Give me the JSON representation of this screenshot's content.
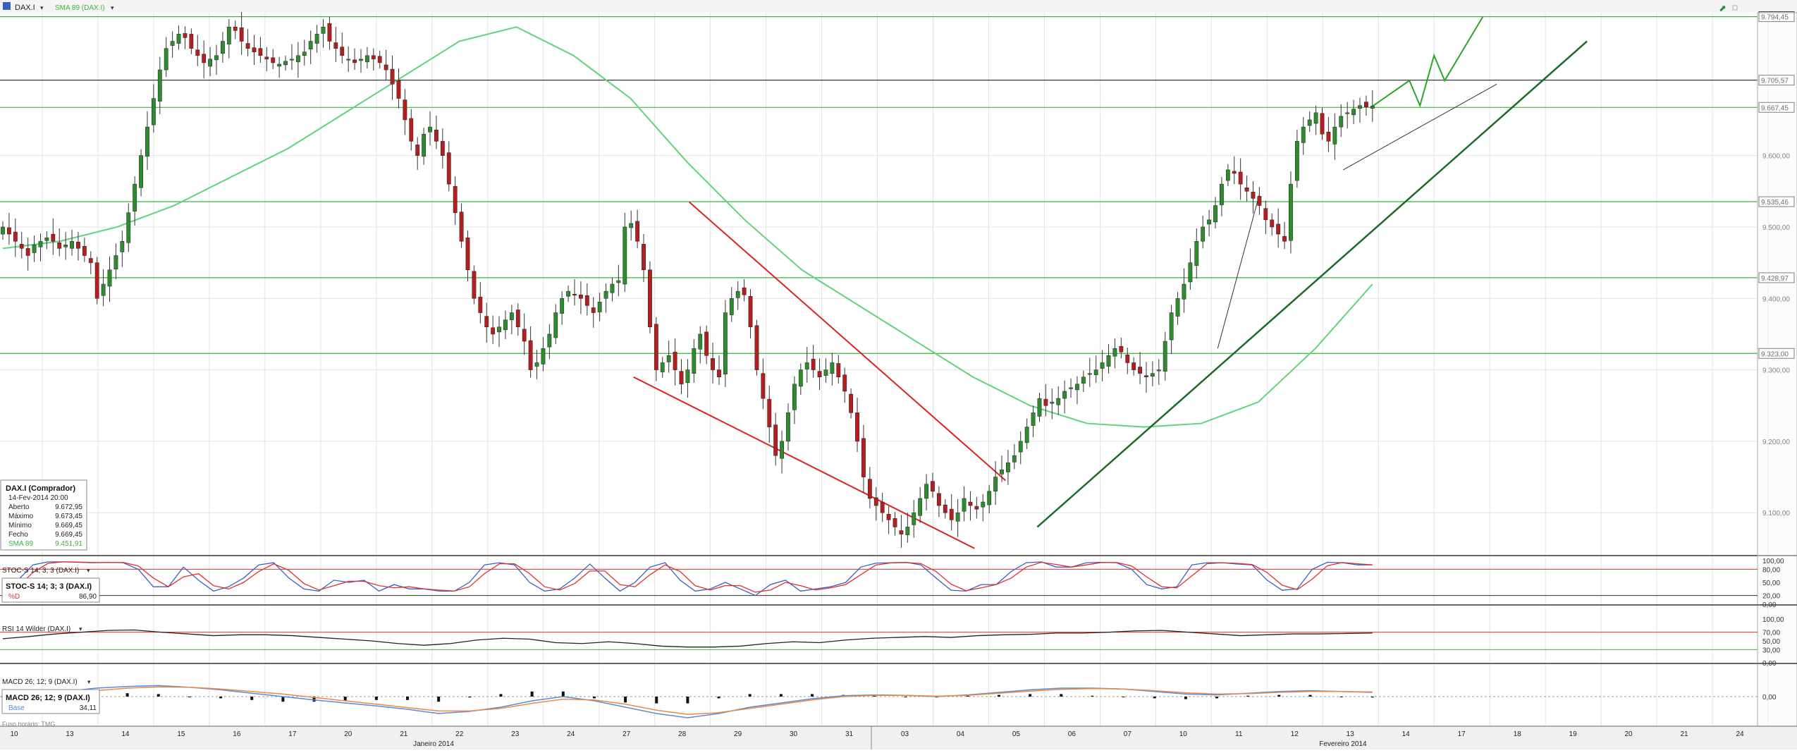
{
  "chart_data": {
    "type": "candlestick",
    "title": "DAX.I",
    "instrument": "DAX.I",
    "overlay_label": "SMA 89 (DAX.I)",
    "x_ticks": [
      "10",
      "13",
      "14",
      "15",
      "16",
      "17",
      "20",
      "21",
      "22",
      "23",
      "24",
      "27",
      "28",
      "29",
      "30",
      "31",
      "03",
      "04",
      "05",
      "06",
      "07",
      "10",
      "11",
      "12",
      "13",
      "14",
      "17",
      "18",
      "19",
      "20",
      "21",
      "24"
    ],
    "month_labels": [
      "Janeiro 2014",
      "Fevereiro 2014"
    ],
    "y_ticks": [
      "9.100,00",
      "9.200,00",
      "9.300,00",
      "9.400,00",
      "9.500,00",
      "9.600,00"
    ],
    "ylim": [
      9040,
      9800
    ],
    "h_levels": [
      {
        "label": "9.794,45",
        "value": 9794.45,
        "color": "#3cb43c"
      },
      {
        "label": "9.705,57",
        "value": 9705.57,
        "color": "#222222"
      },
      {
        "label": "9.667,45",
        "value": 9667.45,
        "color": "#3cb43c"
      },
      {
        "label": "9.535,46",
        "value": 9535.46,
        "color": "#3cb43c"
      },
      {
        "label": "9.428,97",
        "value": 9428.97,
        "color": "#3cb43c"
      },
      {
        "label": "9.323,00",
        "value": 9323.0,
        "color": "#3cb43c"
      }
    ],
    "last_price": 9669.45,
    "closes": [
      9500,
      9490,
      9480,
      9470,
      9460,
      9475,
      9480,
      9485,
      9480,
      9470,
      9475,
      9480,
      9470,
      9460,
      9450,
      9400,
      9420,
      9440,
      9460,
      9480,
      9520,
      9560,
      9600,
      9640,
      9680,
      9720,
      9750,
      9760,
      9770,
      9765,
      9750,
      9740,
      9730,
      9735,
      9740,
      9760,
      9780,
      9775,
      9760,
      9750,
      9745,
      9740,
      9735,
      9730,
      9728,
      9732,
      9735,
      9740,
      9745,
      9760,
      9770,
      9780,
      9760,
      9750,
      9740,
      9735,
      9730,
      9735,
      9740,
      9735,
      9730,
      9720,
      9700,
      9680,
      9650,
      9620,
      9600,
      9630,
      9640,
      9620,
      9600,
      9560,
      9520,
      9480,
      9440,
      9400,
      9380,
      9360,
      9350,
      9360,
      9370,
      9380,
      9360,
      9340,
      9300,
      9310,
      9330,
      9350,
      9380,
      9400,
      9410,
      9405,
      9400,
      9390,
      9380,
      9395,
      9410,
      9420,
      9425,
      9500,
      9505,
      9480,
      9440,
      9360,
      9300,
      9310,
      9320,
      9300,
      9280,
      9300,
      9330,
      9350,
      9320,
      9300,
      9290,
      9380,
      9400,
      9410,
      9405,
      9360,
      9300,
      9260,
      9220,
      9180,
      9200,
      9240,
      9280,
      9300,
      9310,
      9300,
      9290,
      9300,
      9310,
      9290,
      9270,
      9240,
      9200,
      9150,
      9120,
      9110,
      9100,
      9090,
      9080,
      9070,
      9080,
      9100,
      9120,
      9140,
      9130,
      9110,
      9100,
      9090,
      9100,
      9120,
      9110,
      9105,
      9115,
      9130,
      9150,
      9160,
      9170,
      9180,
      9200,
      9220,
      9240,
      9260,
      9250,
      9255,
      9260,
      9270,
      9275,
      9280,
      9290,
      9295,
      9300,
      9310,
      9320,
      9330,
      9325,
      9310,
      9300,
      9295,
      9290,
      9295,
      9300,
      9340,
      9380,
      9400,
      9420,
      9450,
      9480,
      9500,
      9510,
      9530,
      9560,
      9580,
      9575,
      9560,
      9550,
      9540,
      9530,
      9510,
      9500,
      9490,
      9480,
      9560,
      9620,
      9640,
      9650,
      9660,
      9630,
      9620,
      9640,
      9655,
      9660,
      9665,
      9670,
      9668,
      9669.45
    ],
    "sma": [
      9470,
      9480,
      9500,
      9530,
      9570,
      9610,
      9660,
      9710,
      9760,
      9780,
      9740,
      9680,
      9590,
      9510,
      9440,
      9390,
      9340,
      9290,
      9250,
      9225,
      9220,
      9225,
      9255,
      9330,
      9420
    ],
    "stoch_label": "STOC-S 14; 3; 3 (DAX.I)",
    "stoch_ticks": [
      "100,00",
      "80,00",
      "50,00",
      "20,00",
      "0,00"
    ],
    "stoch_values": [
      25,
      55,
      90,
      97,
      97,
      96,
      95,
      96,
      95,
      80,
      40,
      40,
      85,
      55,
      30,
      40,
      60,
      90,
      95,
      60,
      35,
      30,
      55,
      50,
      55,
      30,
      45,
      35,
      35,
      30,
      30,
      50,
      90,
      95,
      90,
      50,
      30,
      35,
      60,
      92,
      60,
      30,
      50,
      85,
      95,
      55,
      30,
      35,
      50,
      35,
      20,
      45,
      55,
      30,
      35,
      40,
      50,
      85,
      94,
      95,
      96,
      90,
      60,
      32,
      30,
      45,
      45,
      75,
      95,
      97,
      85,
      85,
      95,
      96,
      95,
      80,
      45,
      35,
      40,
      90,
      95,
      95,
      92,
      90,
      55,
      32,
      35,
      80,
      96,
      95,
      90,
      90
    ],
    "rsi_label": "RSI 14 Wilder (DAX.I)",
    "rsi_ticks": [
      "100,00",
      "70,00",
      "50,00",
      "30,00",
      "0,00"
    ],
    "rsi_values": [
      55,
      60,
      66,
      70,
      74,
      75,
      70,
      66,
      62,
      64,
      64,
      62,
      58,
      54,
      50,
      44,
      40,
      44,
      52,
      56,
      54,
      46,
      44,
      48,
      44,
      38,
      36,
      36,
      38,
      44,
      48,
      46,
      52,
      56,
      58,
      60,
      58,
      62,
      64,
      65,
      68,
      68,
      70,
      73,
      74,
      70,
      66,
      62,
      64,
      66,
      66,
      67,
      68
    ],
    "macd_label": "MACD 26; 12; 9 (DAX.I)",
    "macd_tick": "0,00",
    "macd_line": [
      0,
      5,
      12,
      20,
      24,
      26,
      22,
      16,
      8,
      0,
      -8,
      -15,
      -22,
      -30,
      -40,
      -35,
      -25,
      -10,
      0,
      -10,
      -25,
      -40,
      -50,
      -40,
      -25,
      -15,
      -5,
      2,
      4,
      3,
      0,
      4,
      10,
      16,
      20,
      20,
      18,
      12,
      6,
      4,
      8,
      12,
      14,
      12,
      10
    ],
    "macd_signal": [
      0,
      3,
      8,
      14,
      20,
      23,
      22,
      18,
      12,
      6,
      -2,
      -10,
      -18,
      -26,
      -34,
      -34,
      -28,
      -16,
      -6,
      -8,
      -18,
      -32,
      -42,
      -38,
      -28,
      -18,
      -8,
      0,
      3,
      3,
      1,
      3,
      8,
      13,
      17,
      19,
      18,
      14,
      9,
      6,
      7,
      10,
      12,
      12,
      11
    ],
    "stoch_box": {
      "title": "STOC-S 14; 3; 3 (DAX.I)",
      "label": "%D",
      "value": "86,90"
    },
    "macd_box": {
      "title": "MACD 26; 12; 9 (DAX.I)",
      "label": "Base",
      "value": "34,11"
    },
    "footer_note": "Fuso horário: TMG"
  },
  "info_box": {
    "title": "DAX.I (Comprador)",
    "datetime": "14-Fev-2014 20:00",
    "rows": [
      {
        "label": "Aberto",
        "value": "9.672,95"
      },
      {
        "label": "Máximo",
        "value": "9.673,45"
      },
      {
        "label": "Mínimo",
        "value": "9.669,45"
      },
      {
        "label": "Fecho",
        "value": "9.669,45"
      },
      {
        "label": "SMA 89",
        "value": "9.451,91"
      }
    ]
  },
  "colors": {
    "up": "#2d8c2d",
    "down": "#b41e1e",
    "sma": "#5fd47a",
    "level": "#3cb43c",
    "red_line": "#e02020",
    "dark_trend": "#1a6b2a",
    "stoch_k": "#3a5fbf",
    "stoch_d": "#e03030",
    "macd_signal": "#e8894a"
  }
}
